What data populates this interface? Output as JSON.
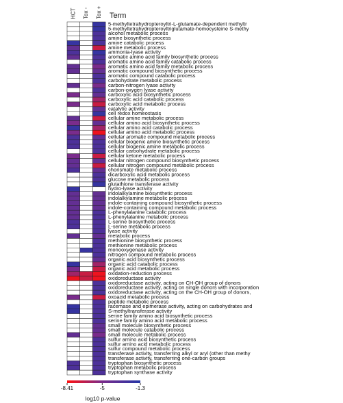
{
  "chart_data": {
    "type": "heatmap",
    "title": "Term",
    "x": [
      "HCT",
      "Tox -",
      "Tox +"
    ],
    "y": [
      "5-methyltetrahydropteroyltri-L-glutamate-dependent methyltr",
      "5-methyltetrahydropteroyltriglutamate-homocysteine S-methy",
      "alcohol metabolic process",
      "amine biosynthetic process",
      "amine catabolic process",
      "amine metabolic process",
      "ammonia-lyase activity",
      "aromatic amino acid family biosynthetic process",
      "aromatic amino acid family catabolic process",
      "aromatic amino acid family metabolic process",
      "aromatic compound biosynthetic process",
      "aromatic compound catabolic process",
      "carbohydrate metabolic process",
      "carbon-nitrogen lyase activity",
      "carbon-oxygen lyase activity",
      "carboxylic acid biosynthetic process",
      "carboxylic acid catabolic process",
      "carboxylic acid metabolic process",
      "catalytic activity",
      "cell redox homeostasis",
      "cellular amine metabolic process",
      "cellular amino acid biosynthetic process",
      "cellular amino acid catabolic process",
      "cellular amino acid metabolic process",
      "cellular aromatic compound metabolic process",
      "cellular biogenic amine biosynthetic process",
      "cellular biogenic amine metabolic process",
      "cellular carbohydrate metabolic process",
      "cellular ketone metabolic process",
      "cellular nitrogen compound biosynthetic process",
      "cellular nitrogen compound metabolic process",
      "chorismate metabolic process",
      "dicarboxylic acid metabolic process",
      "glucose metabolic process",
      "glutathione transferase activity",
      "hydro-lyase activity",
      "indolalkylamine biosynthetic process",
      "indolalkylamine metabolic process",
      "indole-containing compound biosynthetic process",
      "indole-containing compound metabolic process",
      "L-phenylalanine catabolic process",
      "L-phenylalanine metabolic process",
      "L-serine biosynthetic process",
      "L-serine metabolic process",
      "lyase activity",
      "metabolic process",
      "methionine biosynthetic process",
      "methionine metabolic process",
      "monooxygenase activity",
      "nitrogen compound metabolic process",
      "organic acid biosynthetic process",
      "organic acid catabolic process",
      "organic acid metabolic process",
      "oxidation-reduction process",
      "oxidoreductase activity",
      "oxidoreductase activity, acting on CH-OH group of donors",
      "oxidoreductase activity, acting on single donors with incorporation",
      "oxidoreductase activity, acting on the CH-OH group of donors,",
      "oxoacid metabolic process",
      "peptide metabolic process",
      "racemase and epimerase activity, acting on carbohydrates and",
      "S-methyltransferase activity",
      "serine family amino acid biosynthetic process",
      "serine family amino acid metabolic process",
      "small molecule biosynthetic process",
      "small molecule catabolic process",
      "small molecule metabolic process",
      "sulfur amino acid biosynthetic process",
      "sulfur amino acid metabolic process",
      "sulfur compound metabolic process",
      "transferase activity, transferring alkyl or aryl (other than methy",
      "transferase activity, transferring one-carbon groups",
      "tryptophan biosynthetic process",
      "tryptophan metabolic process",
      "tryptophan synthase activity"
    ],
    "values": [
      [
        null,
        null,
        -2
      ],
      [
        null,
        null,
        -2
      ],
      [
        null,
        null,
        -3
      ],
      [
        null,
        null,
        -3
      ],
      [
        -2,
        null,
        -3
      ],
      [
        -4,
        null,
        -7
      ],
      [
        -3,
        null,
        -2
      ],
      [
        -4,
        null,
        -3
      ],
      [
        null,
        null,
        -3
      ],
      [
        -4,
        null,
        -5
      ],
      [
        -4,
        null,
        -4
      ],
      [
        null,
        null,
        -3
      ],
      [
        null,
        null,
        -3
      ],
      [
        -4,
        null,
        -5
      ],
      [
        null,
        null,
        -3
      ],
      [
        -5,
        null,
        -4
      ],
      [
        null,
        null,
        -6
      ],
      [
        -5,
        null,
        -7
      ],
      [
        null,
        null,
        -4
      ],
      [
        null,
        null,
        -2
      ],
      [
        -4,
        null,
        -7
      ],
      [
        -5,
        null,
        -4
      ],
      [
        -2,
        null,
        -6
      ],
      [
        -5,
        null,
        -8
      ],
      [
        -3,
        null,
        -4
      ],
      [
        -3,
        null,
        -3
      ],
      [
        -3,
        null,
        -3
      ],
      [
        null,
        null,
        -3
      ],
      [
        -5,
        null,
        -7
      ],
      [
        -4,
        null,
        -4
      ],
      [
        -4,
        null,
        -7
      ],
      [
        -3,
        null,
        -4
      ],
      [
        null,
        null,
        -3
      ],
      [
        null,
        null,
        -3
      ],
      [
        null,
        null,
        -2
      ],
      [
        -2,
        null,
        null
      ],
      [
        -4,
        null,
        -4
      ],
      [
        -4,
        null,
        -4
      ],
      [
        -4,
        null,
        -4
      ],
      [
        -4,
        null,
        -4
      ],
      [
        -4,
        null,
        -3
      ],
      [
        -4,
        null,
        -3
      ],
      [
        -3,
        null,
        -3
      ],
      [
        -3,
        null,
        -3
      ],
      [
        null,
        null,
        -3
      ],
      [
        -4,
        null,
        -4
      ],
      [
        null,
        null,
        -3
      ],
      [
        null,
        null,
        -3
      ],
      [
        null,
        -2,
        -3
      ],
      [
        null,
        null,
        -3
      ],
      [
        null,
        null,
        -4
      ],
      [
        -2,
        null,
        -6
      ],
      [
        -5,
        null,
        -7
      ],
      [
        -6,
        -7,
        -8
      ],
      [
        -8,
        -7,
        -8
      ],
      [
        null,
        null,
        -3
      ],
      [
        null,
        null,
        -3
      ],
      [
        null,
        null,
        -3
      ],
      [
        -5,
        null,
        -7
      ],
      [
        null,
        null,
        -3
      ],
      [
        -2,
        null,
        -3
      ],
      [
        -2,
        null,
        -3
      ],
      [
        null,
        null,
        -3
      ],
      [
        null,
        null,
        -3
      ],
      [
        null,
        null,
        -4
      ],
      [
        null,
        null,
        -4
      ],
      [
        -4,
        null,
        -5
      ],
      [
        null,
        null,
        -3
      ],
      [
        null,
        null,
        -3
      ],
      [
        null,
        null,
        -3
      ],
      [
        null,
        null,
        -3
      ],
      [
        null,
        null,
        -3
      ],
      [
        -3,
        null,
        -3
      ],
      [
        -3,
        null,
        -3
      ],
      [
        null,
        null,
        -3
      ]
    ],
    "clim": [
      -8.41,
      -1.3
    ],
    "cticks": [
      -8.41,
      -5,
      -1.3
    ],
    "colors": [
      "#ff1010",
      "#7a2c8c",
      "#2636a6"
    ],
    "colorbar_label": "log10 p-value"
  }
}
